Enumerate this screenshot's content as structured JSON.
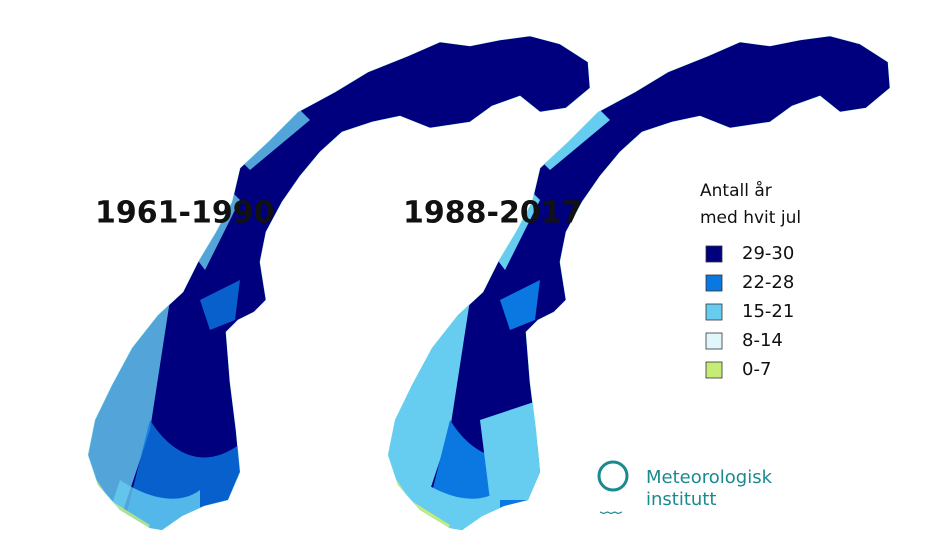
{
  "maps": [
    {
      "label": "1961-1990"
    },
    {
      "label": "1988-2017"
    }
  ],
  "legend": {
    "title": [
      "Antall år",
      "med hvit jul"
    ],
    "items": [
      {
        "label": "29-30",
        "color": "#00007e"
      },
      {
        "label": "22-28",
        "color": "#0a78e0"
      },
      {
        "label": "15-21",
        "color": "#66cdf0"
      },
      {
        "label": "8-14",
        "color": "#dff6fb"
      },
      {
        "label": "0-7",
        "color": "#c6ec78"
      }
    ]
  },
  "logo": {
    "lines": [
      "Meteorologisk",
      "institutt"
    ],
    "color": "#1a8a8f"
  }
}
